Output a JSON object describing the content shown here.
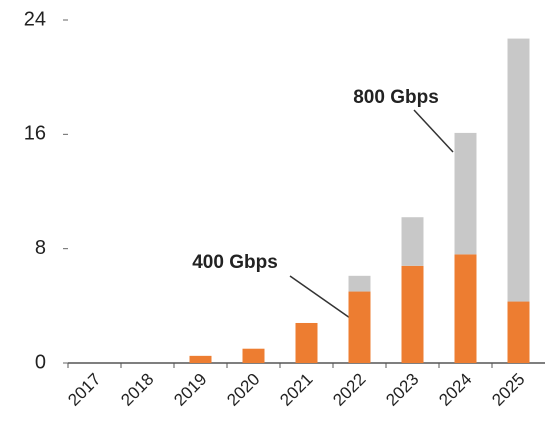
{
  "chart_data": {
    "type": "stacked-bar",
    "categories": [
      "2017",
      "2018",
      "2019",
      "2020",
      "2021",
      "2022",
      "2023",
      "2024",
      "2025"
    ],
    "series": [
      {
        "name": "400 Gbps",
        "color": "#ed7d31",
        "values": [
          0,
          0,
          0.5,
          1.0,
          2.8,
          5.0,
          6.8,
          7.6,
          4.3
        ]
      },
      {
        "name": "800 Gbps",
        "color": "#c8c8c8",
        "values": [
          0,
          0,
          0,
          0,
          0,
          1.1,
          3.4,
          8.5,
          18.4
        ]
      }
    ],
    "ylim": [
      0,
      24
    ],
    "yticks": [
      0,
      8,
      16,
      24
    ],
    "grid": false
  }
}
